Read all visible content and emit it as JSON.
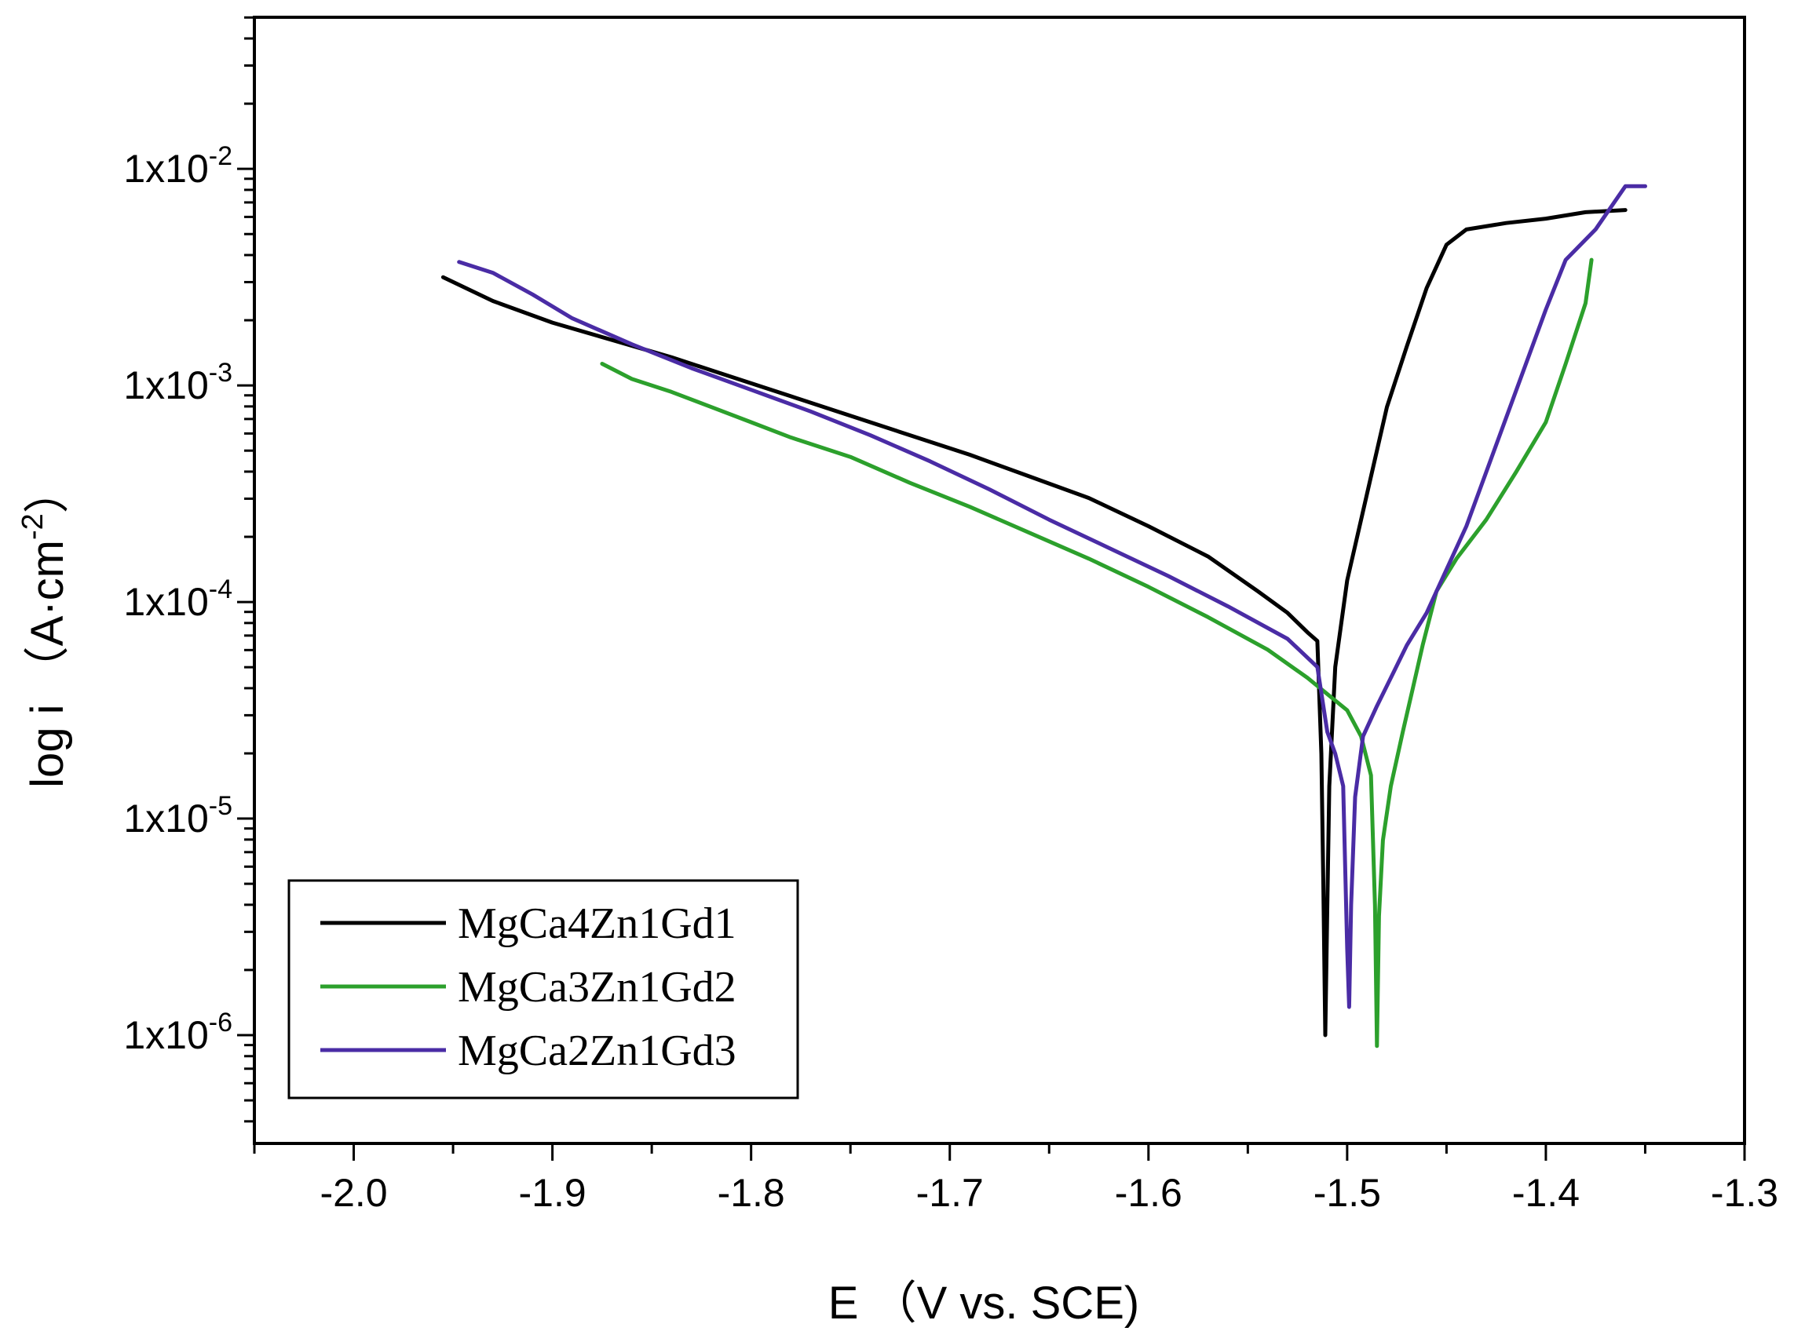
{
  "chart_data": {
    "type": "line",
    "xlabel": "E （V vs. SCE)",
    "ylabel": "log i （A·cm",
    "ylabel_superscript": "-2",
    "ylabel_close": "）",
    "xlim": [
      -2.05,
      -1.3
    ],
    "ylim_log10": [
      -6.5,
      -1.3
    ],
    "y_scale": "log",
    "grid": false,
    "legend_position": "bottom-left",
    "x_ticks": [
      {
        "value": -2.0,
        "label": "-2.0"
      },
      {
        "value": -1.9,
        "label": "-1.9"
      },
      {
        "value": -1.8,
        "label": "-1.8"
      },
      {
        "value": -1.7,
        "label": "-1.7"
      },
      {
        "value": -1.6,
        "label": "-1.6"
      },
      {
        "value": -1.5,
        "label": "-1.5"
      },
      {
        "value": -1.4,
        "label": "-1.4"
      },
      {
        "value": -1.3,
        "label": "-1.3"
      }
    ],
    "y_ticks": [
      {
        "exp": -2,
        "base": "1x10",
        "sup": "-2"
      },
      {
        "exp": -3,
        "base": "1x10",
        "sup": "-3"
      },
      {
        "exp": -4,
        "base": "1x10",
        "sup": "-4"
      },
      {
        "exp": -5,
        "base": "1x10",
        "sup": "-5"
      },
      {
        "exp": -6,
        "base": "1x10",
        "sup": "-6"
      }
    ],
    "series": [
      {
        "name": "MgCa4Zn1Gd1",
        "color": "#000000",
        "points": [
          [
            -1.955,
            -2.5
          ],
          [
            -1.93,
            -2.61
          ],
          [
            -1.9,
            -2.71
          ],
          [
            -1.87,
            -2.79
          ],
          [
            -1.84,
            -2.87
          ],
          [
            -1.81,
            -2.96
          ],
          [
            -1.78,
            -3.05
          ],
          [
            -1.75,
            -3.14
          ],
          [
            -1.72,
            -3.23
          ],
          [
            -1.69,
            -3.32
          ],
          [
            -1.66,
            -3.42
          ],
          [
            -1.63,
            -3.52
          ],
          [
            -1.6,
            -3.65
          ],
          [
            -1.57,
            -3.79
          ],
          [
            -1.545,
            -3.95
          ],
          [
            -1.53,
            -4.05
          ],
          [
            -1.52,
            -4.14
          ],
          [
            -1.515,
            -4.18
          ],
          [
            -1.513,
            -4.7
          ],
          [
            -1.512,
            -5.3
          ],
          [
            -1.511,
            -6.0
          ],
          [
            -1.51,
            -5.4
          ],
          [
            -1.509,
            -4.85
          ],
          [
            -1.506,
            -4.3
          ],
          [
            -1.5,
            -3.9
          ],
          [
            -1.49,
            -3.5
          ],
          [
            -1.48,
            -3.1
          ],
          [
            -1.47,
            -2.82
          ],
          [
            -1.46,
            -2.55
          ],
          [
            -1.45,
            -2.35
          ],
          [
            -1.44,
            -2.28
          ],
          [
            -1.42,
            -2.25
          ],
          [
            -1.4,
            -2.23
          ],
          [
            -1.38,
            -2.2
          ],
          [
            -1.36,
            -2.19
          ]
        ]
      },
      {
        "name": "MgCa3Zn1Gd2",
        "color": "#2ca02c",
        "points": [
          [
            -1.875,
            -2.9
          ],
          [
            -1.86,
            -2.97
          ],
          [
            -1.84,
            -3.03
          ],
          [
            -1.82,
            -3.1
          ],
          [
            -1.8,
            -3.17
          ],
          [
            -1.78,
            -3.24
          ],
          [
            -1.75,
            -3.33
          ],
          [
            -1.72,
            -3.45
          ],
          [
            -1.69,
            -3.56
          ],
          [
            -1.66,
            -3.68
          ],
          [
            -1.63,
            -3.8
          ],
          [
            -1.6,
            -3.93
          ],
          [
            -1.57,
            -4.07
          ],
          [
            -1.54,
            -4.22
          ],
          [
            -1.52,
            -4.35
          ],
          [
            -1.5,
            -4.5
          ],
          [
            -1.493,
            -4.62
          ],
          [
            -1.488,
            -4.8
          ],
          [
            -1.486,
            -5.4
          ],
          [
            -1.485,
            -6.05
          ],
          [
            -1.484,
            -5.45
          ],
          [
            -1.482,
            -5.1
          ],
          [
            -1.478,
            -4.85
          ],
          [
            -1.472,
            -4.6
          ],
          [
            -1.467,
            -4.4
          ],
          [
            -1.462,
            -4.2
          ],
          [
            -1.455,
            -3.95
          ],
          [
            -1.445,
            -3.8
          ],
          [
            -1.43,
            -3.62
          ],
          [
            -1.415,
            -3.4
          ],
          [
            -1.4,
            -3.17
          ],
          [
            -1.39,
            -2.9
          ],
          [
            -1.38,
            -2.62
          ],
          [
            -1.377,
            -2.42
          ]
        ]
      },
      {
        "name": "MgCa2Zn1Gd3",
        "color": "#4a2ca5",
        "points": [
          [
            -1.947,
            -2.43
          ],
          [
            -1.93,
            -2.48
          ],
          [
            -1.91,
            -2.58
          ],
          [
            -1.89,
            -2.69
          ],
          [
            -1.86,
            -2.81
          ],
          [
            -1.83,
            -2.92
          ],
          [
            -1.8,
            -3.02
          ],
          [
            -1.77,
            -3.12
          ],
          [
            -1.74,
            -3.23
          ],
          [
            -1.71,
            -3.35
          ],
          [
            -1.68,
            -3.48
          ],
          [
            -1.65,
            -3.62
          ],
          [
            -1.62,
            -3.75
          ],
          [
            -1.59,
            -3.88
          ],
          [
            -1.56,
            -4.02
          ],
          [
            -1.53,
            -4.17
          ],
          [
            -1.515,
            -4.3
          ],
          [
            -1.51,
            -4.6
          ],
          [
            -1.506,
            -4.7
          ],
          [
            -1.502,
            -4.85
          ],
          [
            -1.5,
            -5.6
          ],
          [
            -1.499,
            -5.87
          ],
          [
            -1.498,
            -5.4
          ],
          [
            -1.496,
            -4.9
          ],
          [
            -1.492,
            -4.62
          ],
          [
            -1.485,
            -4.48
          ],
          [
            -1.478,
            -4.35
          ],
          [
            -1.47,
            -4.2
          ],
          [
            -1.46,
            -4.05
          ],
          [
            -1.45,
            -3.85
          ],
          [
            -1.44,
            -3.65
          ],
          [
            -1.43,
            -3.4
          ],
          [
            -1.42,
            -3.15
          ],
          [
            -1.41,
            -2.9
          ],
          [
            -1.4,
            -2.65
          ],
          [
            -1.39,
            -2.42
          ],
          [
            -1.375,
            -2.28
          ],
          [
            -1.36,
            -2.08
          ],
          [
            -1.35,
            -2.08
          ]
        ]
      }
    ]
  }
}
